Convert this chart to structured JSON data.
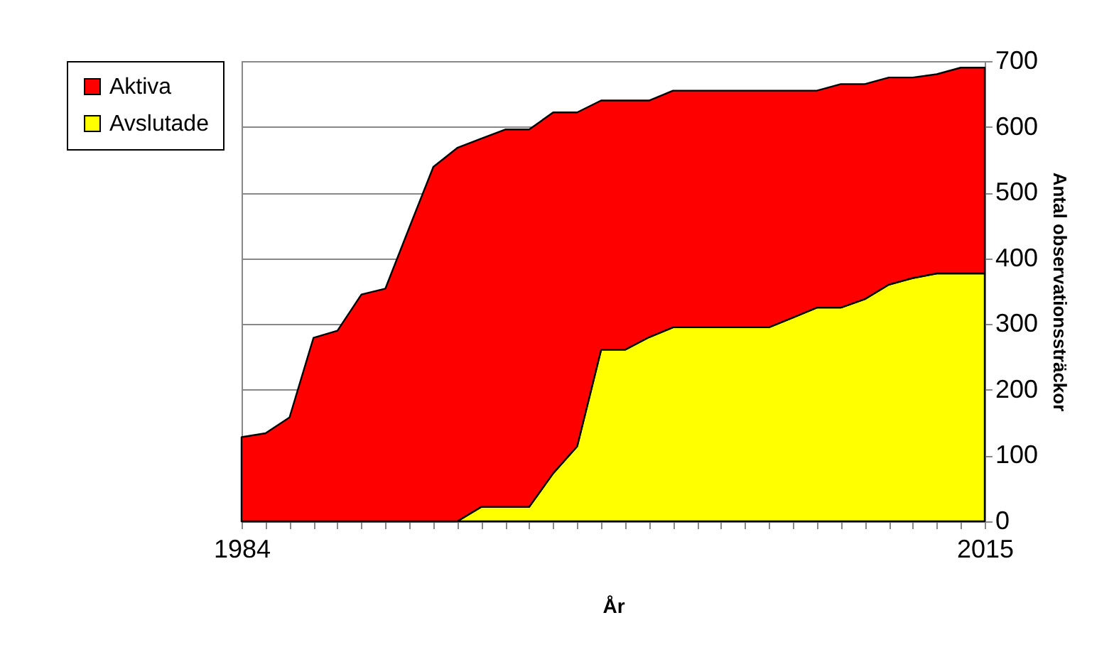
{
  "chart_data": {
    "type": "area",
    "stacked": true,
    "xlabel": "År",
    "ylabel": "Antal observationssträckor",
    "x": [
      1984,
      1985,
      1986,
      1987,
      1988,
      1989,
      1990,
      1991,
      1992,
      1993,
      1994,
      1995,
      1996,
      1997,
      1998,
      1999,
      2000,
      2001,
      2002,
      2003,
      2004,
      2005,
      2006,
      2007,
      2008,
      2009,
      2010,
      2011,
      2012,
      2013,
      2014,
      2015
    ],
    "series": [
      {
        "name": "Avslutade",
        "color": "#ffff00",
        "values": [
          0,
          0,
          0,
          0,
          0,
          0,
          0,
          0,
          0,
          0,
          22,
          22,
          22,
          73,
          114,
          261,
          261,
          280,
          295,
          295,
          295,
          295,
          295,
          310,
          325,
          325,
          338,
          360,
          370,
          377,
          377,
          377
        ]
      },
      {
        "name": "Aktiva",
        "color": "#ff0000",
        "values": [
          128,
          134,
          158,
          279,
          290,
          345,
          354,
          447,
          539,
          568,
          560,
          574,
          574,
          549,
          508,
          379,
          379,
          360,
          360,
          360,
          360,
          360,
          360,
          345,
          330,
          340,
          327,
          315,
          305,
          303,
          313,
          313
        ]
      }
    ],
    "xlim": [
      1984,
      2015
    ],
    "xticks": [
      1984,
      {
        "value": 1985,
        "label": null
      },
      {
        "value": 1986,
        "label": null
      },
      {
        "value": 1987,
        "label": null
      },
      {
        "value": 1988,
        "label": null
      },
      {
        "value": 1989,
        "label": null
      },
      {
        "value": 1990,
        "label": null
      },
      {
        "value": 1991,
        "label": null
      },
      {
        "value": 1992,
        "label": null
      },
      {
        "value": 1993,
        "label": null
      },
      {
        "value": 1994,
        "label": null
      },
      {
        "value": 1995,
        "label": null
      },
      {
        "value": 1996,
        "label": null
      },
      {
        "value": 1997,
        "label": null
      },
      {
        "value": 1998,
        "label": null
      },
      {
        "value": 1999,
        "label": null
      },
      {
        "value": 2000,
        "label": null
      },
      {
        "value": 2001,
        "label": null
      },
      {
        "value": 2002,
        "label": null
      },
      {
        "value": 2003,
        "label": null
      },
      {
        "value": 2004,
        "label": null
      },
      {
        "value": 2005,
        "label": null
      },
      {
        "value": 2006,
        "label": null
      },
      {
        "value": 2007,
        "label": null
      },
      {
        "value": 2008,
        "label": null
      },
      {
        "value": 2009,
        "label": null
      },
      {
        "value": 2010,
        "label": null
      },
      {
        "value": 2011,
        "label": null
      },
      {
        "value": 2012,
        "label": null
      },
      {
        "value": 2013,
        "label": null
      },
      {
        "value": 2014,
        "label": null
      },
      2015
    ],
    "ylim": [
      0,
      700
    ],
    "yticks": [
      0,
      100,
      200,
      300,
      400,
      500,
      600,
      700
    ],
    "grid": "y",
    "legend": "left"
  }
}
